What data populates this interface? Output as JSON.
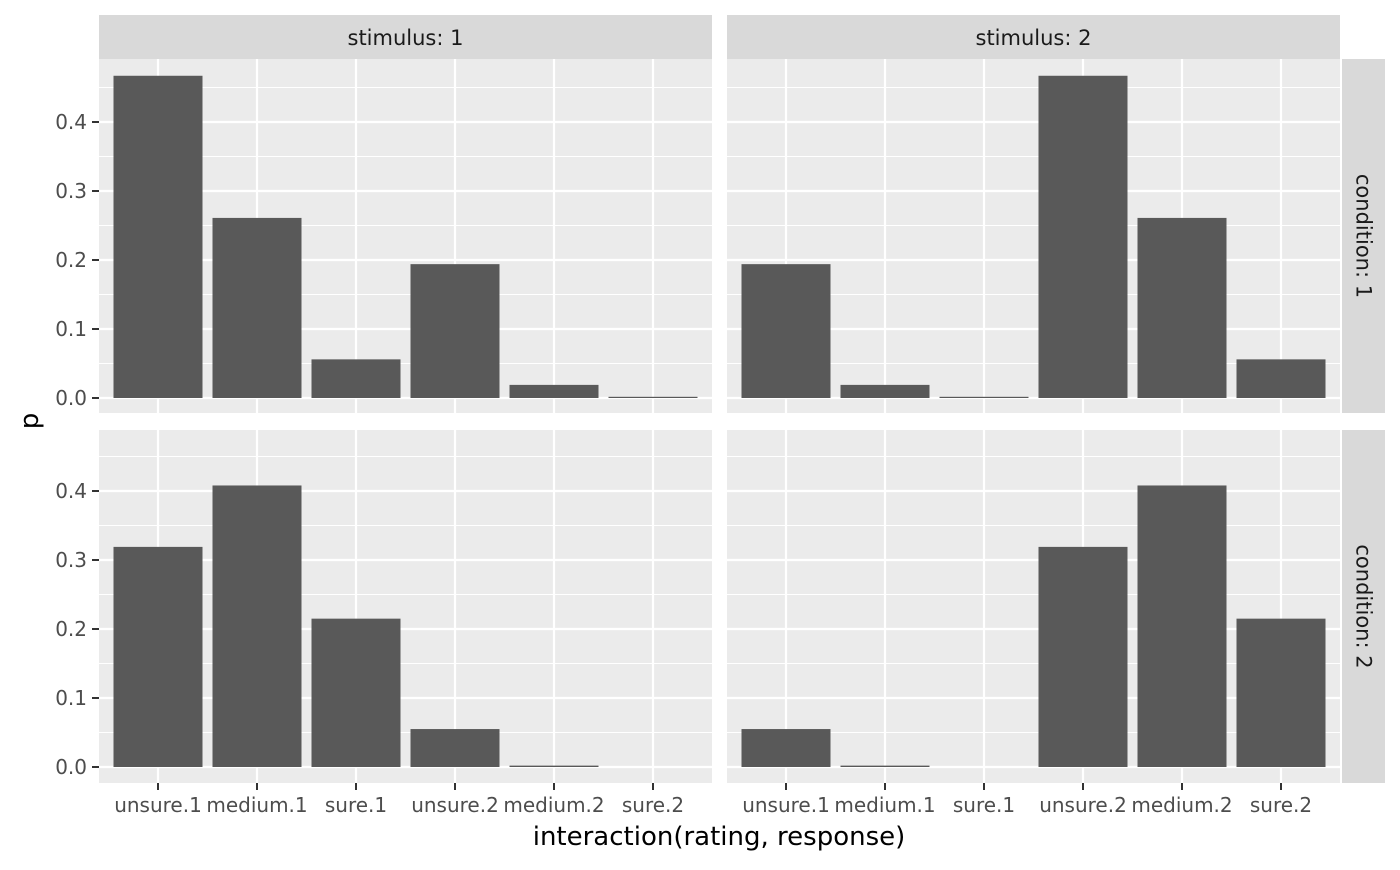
{
  "chart_data": {
    "type": "bar",
    "facet_layout": "grid",
    "xlabel": "interaction(rating, response)",
    "ylabel": "p",
    "ylim": [
      0,
      0.49
    ],
    "y_ticks": [
      "0.0",
      "0.1",
      "0.2",
      "0.3",
      "0.4"
    ],
    "y_tick_values": [
      0,
      0.1,
      0.2,
      0.3,
      0.4
    ],
    "categories": [
      "unsure.1",
      "medium.1",
      "sure.1",
      "unsure.2",
      "medium.2",
      "sure.2"
    ],
    "col_strips": [
      "stimulus: 1",
      "stimulus: 2"
    ],
    "row_strips": [
      "condition: 1",
      "condition: 2"
    ],
    "grid": true,
    "colors": {
      "bar": "#595959",
      "panel_bg": "#ebebeb",
      "grid": "#ffffff",
      "strip_bg": "#d9d9d9",
      "text": "#1a1a1a",
      "tick_label": "#4d4d4d"
    },
    "panels": [
      {
        "row": 0,
        "col": 0,
        "values": [
          0.467,
          0.261,
          0.056,
          0.194,
          0.019,
          0.001
        ]
      },
      {
        "row": 0,
        "col": 1,
        "values": [
          0.194,
          0.019,
          0.001,
          0.467,
          0.261,
          0.056
        ]
      },
      {
        "row": 1,
        "col": 0,
        "values": [
          0.319,
          0.408,
          0.215,
          0.055,
          0.002,
          0.0
        ]
      },
      {
        "row": 1,
        "col": 1,
        "values": [
          0.055,
          0.002,
          0.0,
          0.319,
          0.408,
          0.215
        ]
      }
    ]
  }
}
